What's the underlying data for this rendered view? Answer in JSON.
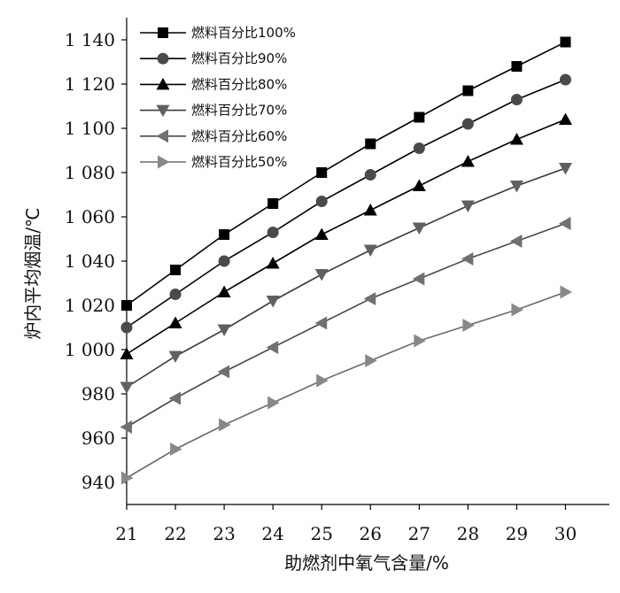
{
  "chart_data": {
    "type": "line",
    "title": "",
    "xlabel": "助燃剂中氧气含量/%",
    "ylabel": "炉内平均烟温/℃",
    "x": [
      21,
      22,
      23,
      24,
      25,
      26,
      27,
      28,
      29,
      30
    ],
    "xlim": [
      21,
      30.9
    ],
    "ylim": [
      930,
      1150
    ],
    "y_ticks": [
      940,
      960,
      980,
      1000,
      1020,
      1040,
      1060,
      1080,
      1100,
      1120,
      1140
    ],
    "y_tick_labels": [
      "940",
      "960",
      "980",
      "1 000",
      "1 020",
      "1 040",
      "1 060",
      "1 080",
      "1 100",
      "1 120",
      "1 140"
    ],
    "x_tick_labels": [
      "21",
      "22",
      "23",
      "24",
      "25",
      "26",
      "27",
      "28",
      "29",
      "30"
    ],
    "grid": false,
    "legend_position": "top-left",
    "series": [
      {
        "name": "燃料百分比100%",
        "marker": "square",
        "color": "#000000",
        "line_color": "#000000",
        "values": [
          1020,
          1036,
          1052,
          1066,
          1080,
          1093,
          1105,
          1117,
          1128,
          1139
        ]
      },
      {
        "name": "燃料百分比90%",
        "marker": "circle",
        "color": "#4a4a4a",
        "line_color": "#000000",
        "values": [
          1010,
          1025,
          1040,
          1053,
          1067,
          1079,
          1091,
          1102,
          1113,
          1122
        ]
      },
      {
        "name": "燃料百分比80%",
        "marker": "triangle-up",
        "color": "#000000",
        "line_color": "#000000",
        "values": [
          998,
          1012,
          1026,
          1039,
          1052,
          1063,
          1074,
          1085,
          1095,
          1104
        ]
      },
      {
        "name": "燃料百分比70%",
        "marker": "triangle-down",
        "color": "#606060",
        "line_color": "#3a3a3a",
        "values": [
          983,
          997,
          1009,
          1022,
          1034,
          1045,
          1055,
          1065,
          1074,
          1082
        ]
      },
      {
        "name": "燃料百分比60%",
        "marker": "triangle-left",
        "color": "#707070",
        "line_color": "#4a4a4a",
        "values": [
          965,
          978,
          990,
          1001,
          1012,
          1023,
          1032,
          1041,
          1049,
          1057
        ]
      },
      {
        "name": "燃料百分比50%",
        "marker": "triangle-right",
        "color": "#888888",
        "line_color": "#6a6a6a",
        "values": [
          942,
          955,
          966,
          976,
          986,
          995,
          1004,
          1011,
          1018,
          1026
        ]
      }
    ]
  }
}
